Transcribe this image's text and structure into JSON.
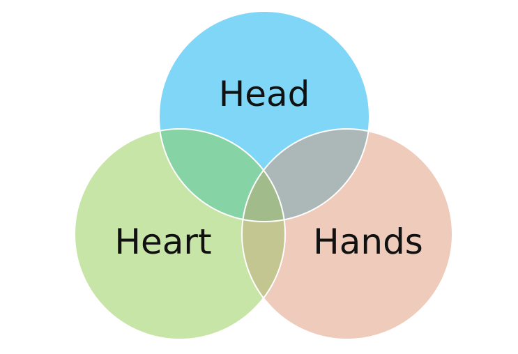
{
  "diagram": {
    "type": "venn",
    "sets": [
      {
        "key": "head",
        "label": "Head",
        "color": "#80D6F7"
      },
      {
        "key": "heart",
        "label": "Heart",
        "color": "#C8E5A8"
      },
      {
        "key": "hands",
        "label": "Hands",
        "color": "#EECBBB"
      }
    ],
    "overlaps": {
      "head_heart": "#86D3A5",
      "head_hands": "#ABB8B7",
      "heart_hands": "#C4C692",
      "all": "#A1BC8A"
    }
  }
}
